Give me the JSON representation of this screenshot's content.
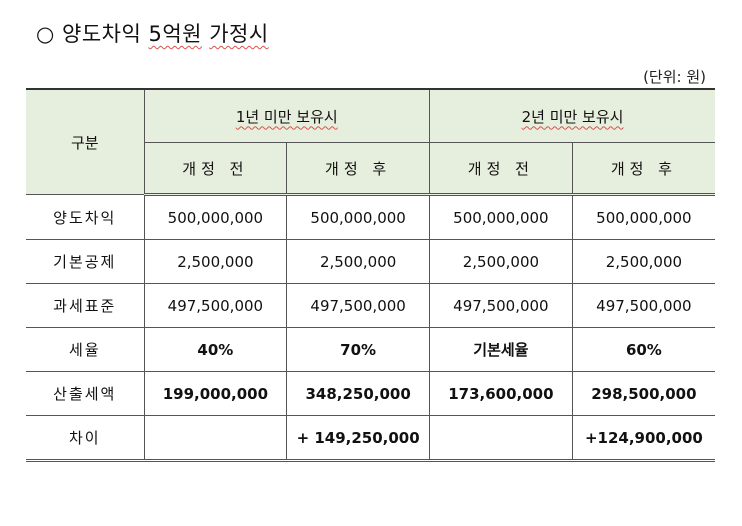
{
  "title": {
    "bullet": "○",
    "prefix": "양도차익 ",
    "underlined": "5억원",
    "suffix": " ",
    "underlined2": "가정시"
  },
  "unit": "(단위: 원)",
  "header": {
    "category": "구분",
    "group1": "1년 미만 보유시",
    "group2": "2년 미만 보유시",
    "before": "개정 전",
    "after": "개정 후"
  },
  "rows": [
    {
      "label": "양도차익",
      "values": [
        "500,000,000",
        "500,000,000",
        "500,000,000",
        "500,000,000"
      ]
    },
    {
      "label": "기본공제",
      "values": [
        "2,500,000",
        "2,500,000",
        "2,500,000",
        "2,500,000"
      ]
    },
    {
      "label": "과세표준",
      "values": [
        "497,500,000",
        "497,500,000",
        "497,500,000",
        "497,500,000"
      ]
    },
    {
      "label": "세율",
      "values": [
        "40%",
        "70%",
        "기본세율",
        "60%"
      ]
    },
    {
      "label": "산출세액",
      "values": [
        "199,000,000",
        "348,250,000",
        "173,600,000",
        "298,500,000"
      ]
    },
    {
      "label": "차이",
      "values": [
        "",
        "+ 149,250,000",
        "",
        "+124,900,000"
      ]
    }
  ]
}
